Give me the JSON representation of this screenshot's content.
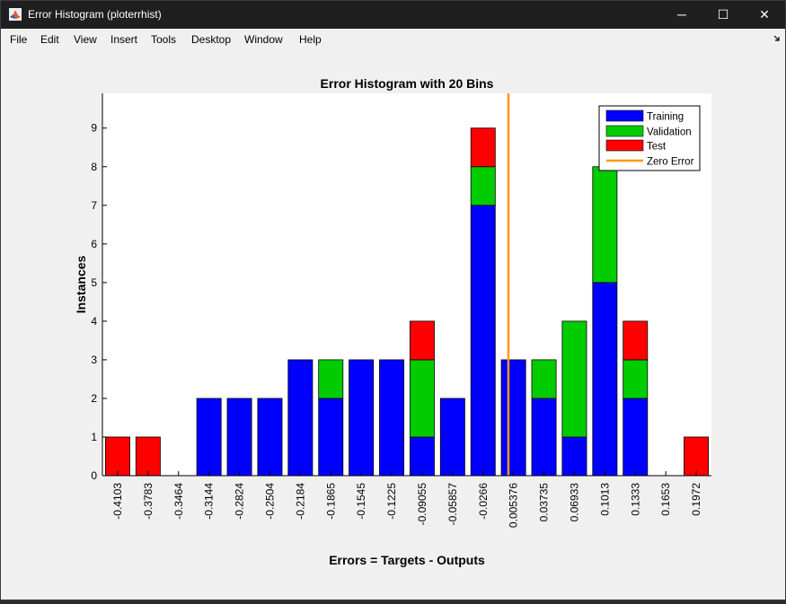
{
  "window": {
    "title": "Error Histogram (ploterrhist)",
    "controls": {
      "minimize": "─",
      "maximize": "☐",
      "close": "✕"
    }
  },
  "menu": [
    "File",
    "Edit",
    "View",
    "Insert",
    "Tools",
    "Desktop",
    "Window",
    "Help"
  ],
  "colors": {
    "training": "#0000ff",
    "validation": "#00cc00",
    "test": "#ff0000",
    "zero_error": "#ff9900"
  },
  "chart_data": {
    "type": "bar",
    "stacked": true,
    "title": "Error Histogram with 20 Bins",
    "xlabel": "Errors = Targets - Outputs",
    "ylabel": "Instances",
    "ylim": [
      0,
      9.9
    ],
    "yticks": [
      0,
      1,
      2,
      3,
      4,
      5,
      6,
      7,
      8,
      9
    ],
    "categories": [
      "-0.4103",
      "-0.3783",
      "-0.3464",
      "-0.3144",
      "-0.2824",
      "-0.2504",
      "-0.2184",
      "-0.1865",
      "-0.1545",
      "-0.1225",
      "-0.09055",
      "-0.05857",
      "-0.0266",
      "0.005376",
      "0.03735",
      "0.06933",
      "0.1013",
      "0.1333",
      "0.1653",
      "0.1972"
    ],
    "series": [
      {
        "name": "Training",
        "color": "#0000ff",
        "values": [
          0,
          0,
          0,
          2,
          2,
          2,
          3,
          2,
          3,
          3,
          1,
          2,
          7,
          3,
          2,
          1,
          5,
          2,
          0,
          0
        ]
      },
      {
        "name": "Validation",
        "color": "#00cc00",
        "values": [
          0,
          0,
          0,
          0,
          0,
          0,
          0,
          1,
          0,
          0,
          2,
          0,
          1,
          0,
          1,
          3,
          3,
          1,
          0,
          0
        ]
      },
      {
        "name": "Test",
        "color": "#ff0000",
        "values": [
          1,
          1,
          0,
          0,
          0,
          0,
          0,
          0,
          0,
          0,
          1,
          0,
          1,
          0,
          0,
          0,
          0,
          1,
          0,
          1
        ]
      }
    ],
    "zero_error_line": {
      "name": "Zero Error",
      "x": 0,
      "color": "#ff9900"
    },
    "legend": [
      "Training",
      "Validation",
      "Test",
      "Zero Error"
    ],
    "legend_position": "top-right",
    "grid": false
  }
}
